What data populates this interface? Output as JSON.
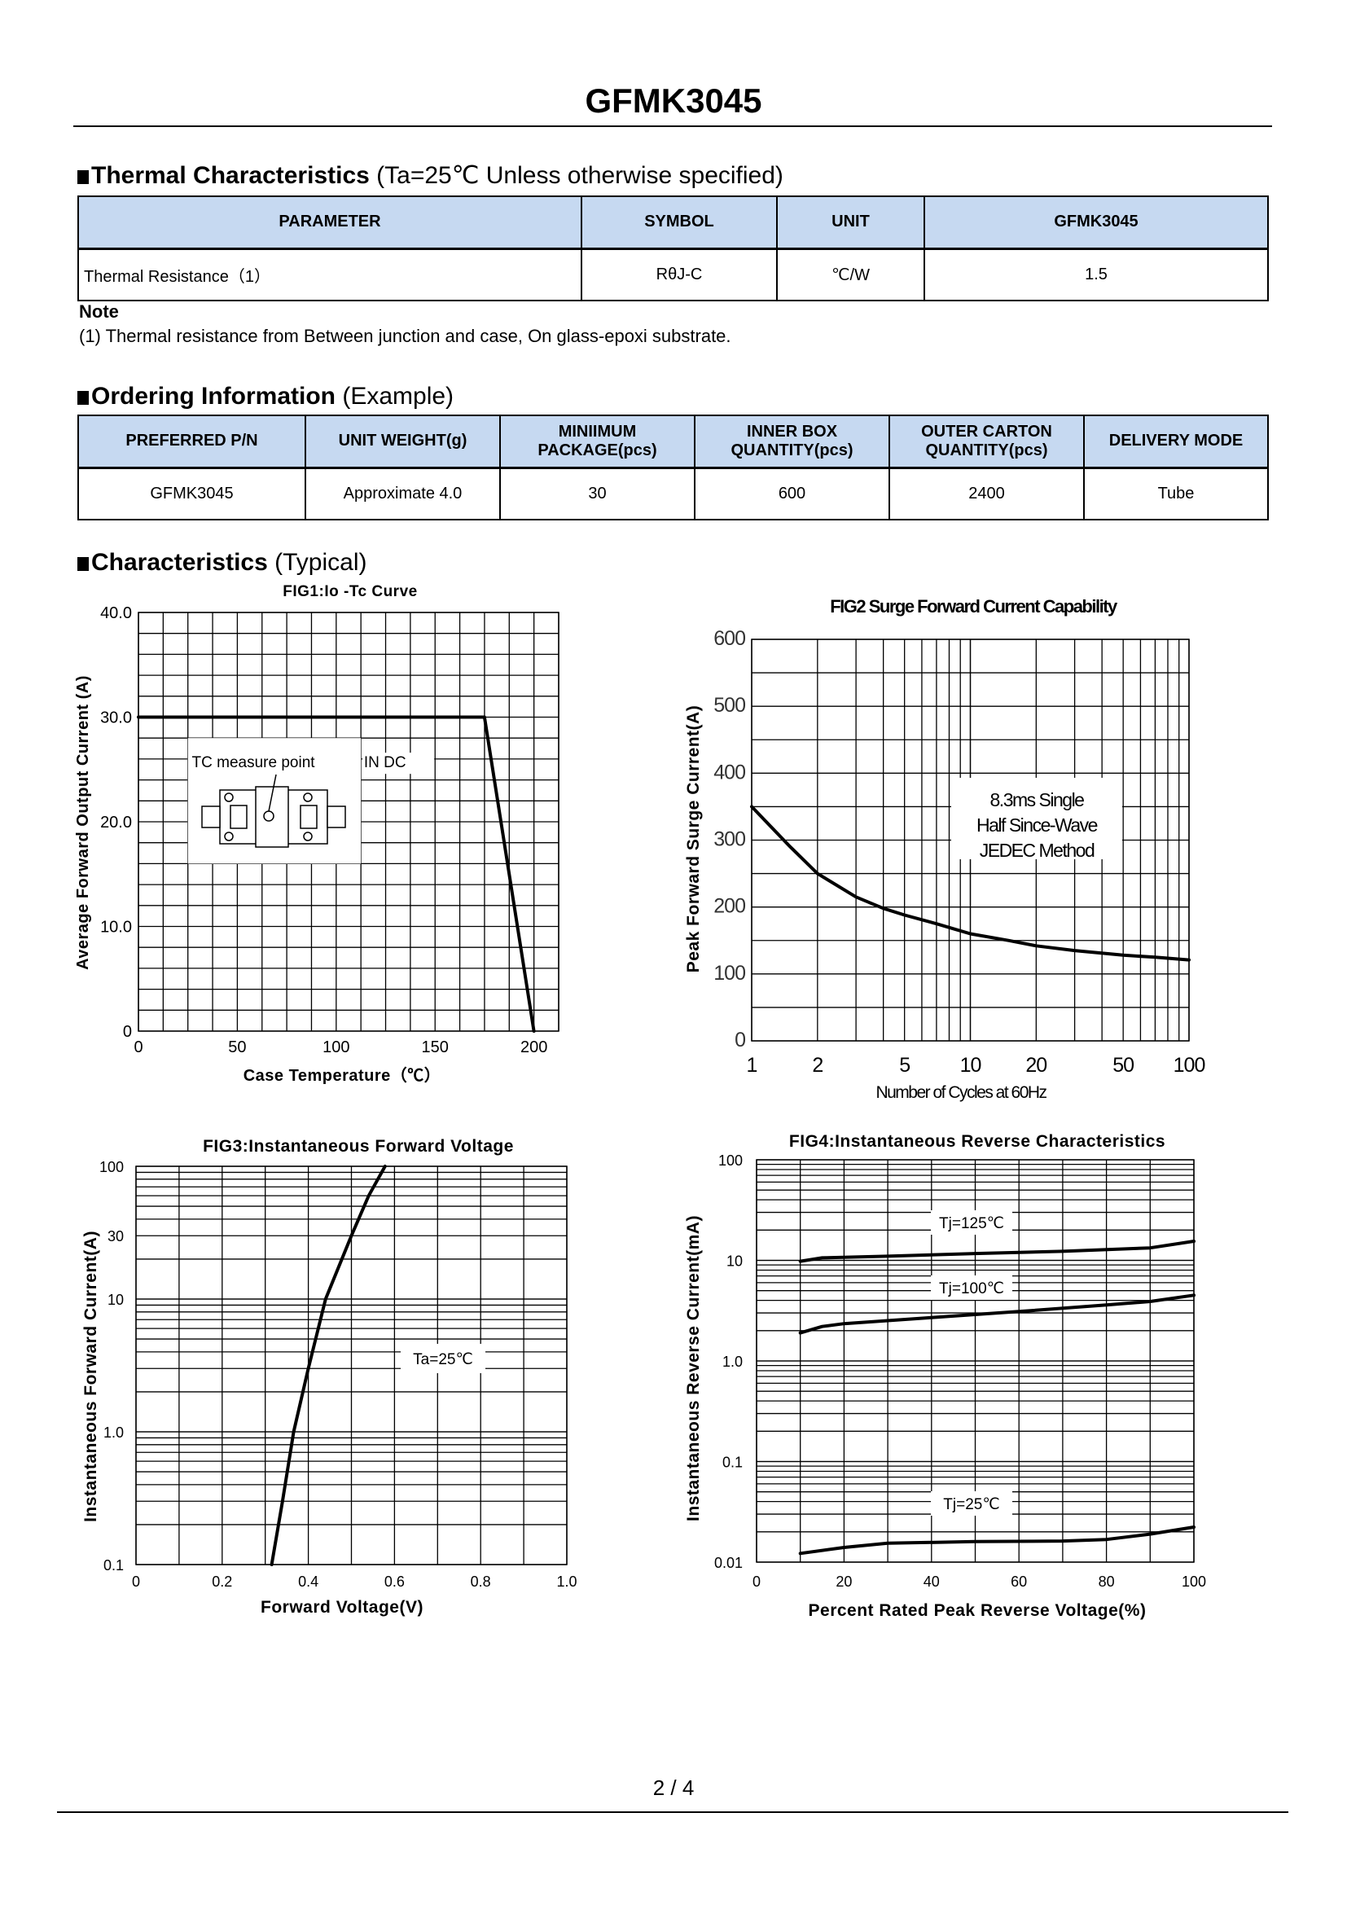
{
  "title": "GFMK3045",
  "thermal": {
    "heading_bold": "Thermal Characteristics",
    "heading_rest": "(Ta=25℃ Unless otherwise specified)",
    "headers": [
      "PARAMETER",
      "SYMBOL",
      "UNIT",
      "GFMK3045"
    ],
    "rows": [
      [
        "Thermal Resistance（1）",
        "RθJ-C",
        "℃/W",
        "1.5"
      ]
    ],
    "note_label": "Note",
    "note_text": "(1)   Thermal resistance from Between junction and case, On glass-epoxi substrate."
  },
  "ordering": {
    "heading_bold": "Ordering Information",
    "heading_rest": "(Example)",
    "headers": [
      "PREFERRED P/N",
      "UNIT WEIGHT(g)",
      "MINIIMUM PACKAGE(pcs)",
      "INNER BOX QUANTITY(pcs)",
      "OUTER CARTON QUANTITY(pcs)",
      "DELIVERY MODE"
    ],
    "rows": [
      [
        "GFMK3045",
        "Approximate 4.0",
        "30",
        "600",
        "2400",
        "Tube"
      ]
    ]
  },
  "characteristics": {
    "heading_bold": "Characteristics",
    "heading_rest": "(Typical)"
  },
  "chart_data": [
    {
      "id": "fig1",
      "type": "line",
      "title": "FIG1:Io -Tc Curve",
      "xlabel": "Case Temperature（℃）",
      "ylabel": "Average Forward Output Current (A)",
      "xlim": [
        0,
        212.5
      ],
      "ylim": [
        0,
        40
      ],
      "xscale": "linear",
      "yscale": "linear",
      "xgrid_step": 12.5,
      "ygrid_step": 2,
      "grid": true,
      "xticks": [
        {
          "v": 0,
          "label": "0"
        },
        {
          "v": 50,
          "label": "50"
        },
        {
          "v": 100,
          "label": "100"
        },
        {
          "v": 150,
          "label": "150"
        },
        {
          "v": 200,
          "label": "200"
        }
      ],
      "yticks": [
        {
          "v": 40,
          "label": "40.0"
        },
        {
          "v": 30,
          "label": "30.0"
        },
        {
          "v": 20,
          "label": "20.0"
        },
        {
          "v": 10,
          "label": "10.0"
        },
        {
          "v": 0,
          "label": "0"
        }
      ],
      "series": [
        {
          "name": "Io",
          "points": [
            [
              0,
              30
            ],
            [
              175,
              30
            ],
            [
              200,
              0
            ]
          ]
        }
      ],
      "annotations": [
        {
          "text": "TC measure point"
        },
        {
          "text": "IN DC"
        }
      ]
    },
    {
      "id": "fig2",
      "type": "line",
      "title": "FIG2 Surge Forward Current Capability",
      "xlabel": "Number of Cycles at 60Hz",
      "ylabel": "Peak Forward Surge Current(A)",
      "xlim": [
        1,
        100
      ],
      "ylim": [
        0,
        600
      ],
      "xscale": "log",
      "yscale": "linear",
      "ygrid_step": 50,
      "grid": true,
      "xticks": [
        {
          "v": 1,
          "label": "1"
        },
        {
          "v": 2,
          "label": "2"
        },
        {
          "v": 5,
          "label": "5"
        },
        {
          "v": 10,
          "label": "10"
        },
        {
          "v": 20,
          "label": "20"
        },
        {
          "v": 50,
          "label": "50"
        },
        {
          "v": 100,
          "label": "100"
        }
      ],
      "yticks": [
        {
          "v": 600,
          "label": "600"
        },
        {
          "v": 500,
          "label": "500"
        },
        {
          "v": 400,
          "label": "400"
        },
        {
          "v": 300,
          "label": "300"
        },
        {
          "v": 200,
          "label": "200"
        },
        {
          "v": 100,
          "label": "100"
        },
        {
          "v": 0,
          "label": "0"
        }
      ],
      "series": [
        {
          "name": "Surge",
          "points": [
            [
              1,
              350
            ],
            [
              1.5,
              290
            ],
            [
              2,
              250
            ],
            [
              3,
              215
            ],
            [
              4,
              198
            ],
            [
              5,
              188
            ],
            [
              7,
              175
            ],
            [
              10,
              160
            ],
            [
              15,
              150
            ],
            [
              20,
              142
            ],
            [
              30,
              135
            ],
            [
              50,
              128
            ],
            [
              70,
              125
            ],
            [
              100,
              121
            ]
          ]
        }
      ],
      "annotations": [
        {
          "text": "8.3ms Single"
        },
        {
          "text": "Half Since-Wave"
        },
        {
          "text": "JEDEC Method"
        }
      ]
    },
    {
      "id": "fig3",
      "type": "line",
      "title": "FIG3:Instantaneous Forward Voltage",
      "xlabel": "Forward Voltage(V)",
      "ylabel": "Instantaneous Forward Current(A)",
      "xlim": [
        0,
        1.0
      ],
      "ylim": [
        0.1,
        100
      ],
      "xscale": "linear",
      "yscale": "log",
      "xgrid_step": 0.1,
      "grid": true,
      "xticks": [
        {
          "v": 0,
          "label": "0"
        },
        {
          "v": 0.2,
          "label": "0.2"
        },
        {
          "v": 0.4,
          "label": "0.4"
        },
        {
          "v": 0.6,
          "label": "0.6"
        },
        {
          "v": 0.8,
          "label": "0.8"
        },
        {
          "v": 1.0,
          "label": "1.0"
        }
      ],
      "yticks": [
        {
          "v": 100,
          "label": "100"
        },
        {
          "v": 30,
          "label": "30"
        },
        {
          "v": 10,
          "label": "10"
        },
        {
          "v": 1,
          "label": "1.0"
        },
        {
          "v": 0.1,
          "label": "0.1"
        }
      ],
      "series": [
        {
          "name": "Ta=25℃",
          "points": [
            [
              0.315,
              0.1
            ],
            [
              0.34,
              0.3
            ],
            [
              0.366,
              1
            ],
            [
              0.4,
              3
            ],
            [
              0.44,
              10
            ],
            [
              0.5,
              30
            ],
            [
              0.54,
              60
            ],
            [
              0.578,
              100
            ]
          ]
        }
      ],
      "annotations": [
        {
          "text": "Ta=25℃"
        }
      ]
    },
    {
      "id": "fig4",
      "type": "line",
      "title": "FIG4:Instantaneous Reverse Characteristics",
      "xlabel": "Percent Rated Peak Reverse Voltage(%)",
      "ylabel": "Instantaneous Reverse Current(mA)",
      "xlim": [
        0,
        100
      ],
      "ylim": [
        0.01,
        100
      ],
      "xscale": "linear",
      "yscale": "log",
      "xgrid_step": 10,
      "grid": true,
      "xticks": [
        {
          "v": 0,
          "label": "0"
        },
        {
          "v": 20,
          "label": "20"
        },
        {
          "v": 40,
          "label": "40"
        },
        {
          "v": 60,
          "label": "60"
        },
        {
          "v": 80,
          "label": "80"
        },
        {
          "v": 100,
          "label": "100"
        }
      ],
      "yticks": [
        {
          "v": 100,
          "label": "100"
        },
        {
          "v": 10,
          "label": "10"
        },
        {
          "v": 1,
          "label": "1.0"
        },
        {
          "v": 0.1,
          "label": "0.1"
        },
        {
          "v": 0.01,
          "label": "0.01"
        }
      ],
      "series": [
        {
          "name": "Tj=125℃",
          "points": [
            [
              10,
              9.8
            ],
            [
              15,
              10.6
            ],
            [
              30,
              11
            ],
            [
              50,
              11.7
            ],
            [
              70,
              12.3
            ],
            [
              90,
              13.3
            ],
            [
              100,
              15.5
            ]
          ]
        },
        {
          "name": "Tj=100℃",
          "points": [
            [
              10,
              1.9
            ],
            [
              15,
              2.2
            ],
            [
              20,
              2.35
            ],
            [
              40,
              2.7
            ],
            [
              60,
              3.1
            ],
            [
              80,
              3.6
            ],
            [
              90,
              3.9
            ],
            [
              100,
              4.5
            ]
          ]
        },
        {
          "name": "Tj=25℃",
          "points": [
            [
              10,
              0.0122
            ],
            [
              20,
              0.014
            ],
            [
              30,
              0.0154
            ],
            [
              50,
              0.016
            ],
            [
              70,
              0.0162
            ],
            [
              80,
              0.0168
            ],
            [
              90,
              0.019
            ],
            [
              100,
              0.0223
            ]
          ]
        }
      ],
      "annotations": [
        {
          "text": "Tj=125℃"
        },
        {
          "text": "Tj=100℃"
        },
        {
          "text": "Tj=25℃"
        }
      ]
    }
  ],
  "footer": {
    "page": "2 / 4"
  }
}
